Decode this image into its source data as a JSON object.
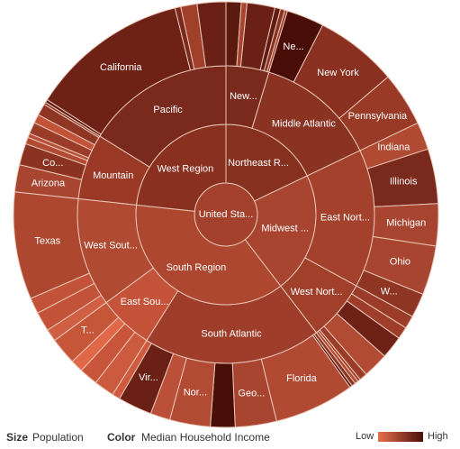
{
  "chart_data": {
    "type": "sunburst",
    "legend": {
      "size_title": "Size",
      "size_label": "Population",
      "color_title": "Color",
      "color_label": "Median Household Income",
      "low": "Low",
      "high": "High",
      "low_color": "#e8704e",
      "high_color": "#4a0e08"
    },
    "root": {
      "label": "United Sta...",
      "color": "#a3412c",
      "children": [
        {
          "label": "Northeast R...",
          "color": "#86301f",
          "children": [
            {
              "label": "New...",
              "color": "#7a2a1c",
              "children": [
                {
                  "label": null,
                  "value": 3.57,
                  "color": "#5a1a10"
                },
                {
                  "label": null,
                  "value": 1.33,
                  "color": "#a84530"
                },
                {
                  "label": null,
                  "value": 6.55,
                  "color": "#6a2015"
                },
                {
                  "label": null,
                  "value": 1.32,
                  "color": "#5e1c12"
                },
                {
                  "label": null,
                  "value": 1.05,
                  "color": "#8a3322"
                },
                {
                  "label": null,
                  "value": 0.63,
                  "color": "#9a3c28"
                }
              ]
            },
            {
              "label": "Middle Atlantic",
              "color": "#8a3322",
              "children": [
                {
                  "label": "Ne...",
                  "value": 8.79,
                  "color": "#4a0e08"
                },
                {
                  "label": "New York",
                  "value": 19.38,
                  "color": "#8a3020"
                },
                {
                  "label": "Pennsylvania",
                  "value": 12.7,
                  "color": "#993a26"
                }
              ]
            }
          ]
        },
        {
          "label": "Midwest ...",
          "color": "#a84530",
          "children": [
            {
              "label": "East Nort...",
              "color": "#a3412c",
              "children": [
                {
                  "label": "Indiana",
                  "value": 6.48,
                  "color": "#b04a32"
                },
                {
                  "label": "Illinois",
                  "value": 12.83,
                  "color": "#7a2a1c"
                },
                {
                  "label": "Michigan",
                  "value": 9.88,
                  "color": "#a84530"
                },
                {
                  "label": "Ohio",
                  "value": 11.54,
                  "color": "#a84530"
                },
                {
                  "label": "W...",
                  "value": 5.69,
                  "color": "#8e3524"
                }
              ]
            },
            {
              "label": "West Nort...",
              "color": "#a0402b",
              "children": [
                {
                  "label": null,
                  "value": 3.05,
                  "color": "#9a3c28"
                },
                {
                  "label": null,
                  "value": 2.85,
                  "color": "#9e3e2a"
                },
                {
                  "label": null,
                  "value": 5.3,
                  "color": "#6e2216"
                },
                {
                  "label": null,
                  "value": 5.99,
                  "color": "#b24b33"
                },
                {
                  "label": null,
                  "value": 1.83,
                  "color": "#9a3c28"
                },
                {
                  "label": null,
                  "value": 0.67,
                  "color": "#a03f2a"
                },
                {
                  "label": null,
                  "value": 0.81,
                  "color": "#b04a32"
                }
              ]
            }
          ]
        },
        {
          "label": "South Region",
          "color": "#ad472f",
          "children": [
            {
              "label": "South Atlantic",
              "color": "#9e3e2a",
              "children": [
                {
                  "label": null,
                  "value": 0.9,
                  "color": "#8a3322"
                },
                {
                  "label": null,
                  "value": 0.6,
                  "color": "#5a1a10"
                },
                {
                  "label": "Florida",
                  "value": 18.8,
                  "color": "#b04a32"
                },
                {
                  "label": "Geo...",
                  "value": 9.69,
                  "color": "#a84530"
                },
                {
                  "label": null,
                  "value": 5.77,
                  "color": "#4a0e08"
                },
                {
                  "label": "Nor...",
                  "value": 9.54,
                  "color": "#b24b33"
                },
                {
                  "label": null,
                  "value": 4.63,
                  "color": "#bb5038"
                },
                {
                  "label": "Vir...",
                  "value": 8.0,
                  "color": "#6a2015"
                },
                {
                  "label": null,
                  "value": 1.85,
                  "color": "#d05a3e"
                }
              ]
            },
            {
              "label": "East Sou...",
              "color": "#c4533a",
              "children": [
                {
                  "label": null,
                  "value": 4.78,
                  "color": "#cc5a3e"
                },
                {
                  "label": null,
                  "value": 4.34,
                  "color": "#c85539"
                },
                {
                  "label": null,
                  "value": 2.97,
                  "color": "#e06848"
                },
                {
                  "label": "T...",
                  "value": 6.35,
                  "color": "#c65638"
                }
              ]
            },
            {
              "label": "West Sout...",
              "color": "#b04a32",
              "children": [
                {
                  "label": null,
                  "value": 2.92,
                  "color": "#d05e42"
                },
                {
                  "label": null,
                  "value": 4.53,
                  "color": "#c25238"
                },
                {
                  "label": null,
                  "value": 3.75,
                  "color": "#c25238"
                },
                {
                  "label": "Texas",
                  "value": 25.15,
                  "color": "#ad472f"
                }
              ]
            }
          ]
        },
        {
          "label": "West Region",
          "color": "#8a3020",
          "children": [
            {
              "label": "Mountain",
              "color": "#9a3a26",
              "children": [
                {
                  "label": "Arizona",
                  "value": 6.39,
                  "color": "#a84530"
                },
                {
                  "label": "Co...",
                  "value": 5.03,
                  "color": "#8a3322"
                },
                {
                  "label": null,
                  "value": 1.57,
                  "color": "#b24b33"
                },
                {
                  "label": null,
                  "value": 0.99,
                  "color": "#b85038"
                },
                {
                  "label": null,
                  "value": 2.7,
                  "color": "#9a3c28"
                },
                {
                  "label": null,
                  "value": 2.06,
                  "color": "#c25238"
                },
                {
                  "label": null,
                  "value": 2.76,
                  "color": "#8e3524"
                },
                {
                  "label": null,
                  "value": 0.56,
                  "color": "#8a3322"
                }
              ]
            },
            {
              "label": "Pacific",
              "color": "#7a2a1c",
              "children": [
                {
                  "label": null,
                  "value": 0.71,
                  "color": "#5a1a10"
                },
                {
                  "label": "California",
                  "value": 37.25,
                  "color": "#6e2216"
                },
                {
                  "label": null,
                  "value": 1.36,
                  "color": "#7a2a1c"
                },
                {
                  "label": null,
                  "value": 3.83,
                  "color": "#a03f2a"
                },
                {
                  "label": null,
                  "value": 6.72,
                  "color": "#6a2015"
                }
              ]
            }
          ]
        }
      ]
    }
  }
}
